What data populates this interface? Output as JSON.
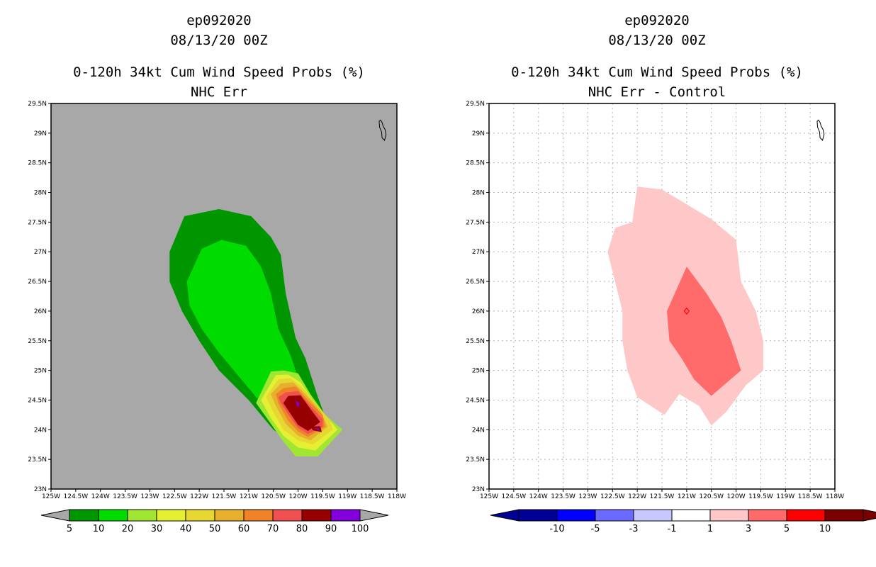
{
  "colors": {
    "gray_bg": "#a8a8a8",
    "prob": [
      "#009600",
      "#00dc00",
      "#a0e632",
      "#e6f032",
      "#e6d732",
      "#e6af2d",
      "#f08228",
      "#f05050",
      "#960000",
      "#8200dc"
    ],
    "diff": [
      "#000096",
      "#0000ff",
      "#6a6aff",
      "#c8c8ff",
      "#ffffff",
      "#ffc8c8",
      "#ff6a6a",
      "#ff0000",
      "#780000"
    ]
  },
  "left_panel": {
    "storm": "ep092020",
    "datetime": "08/13/20 00Z",
    "title": "0-120h 34kt Cum Wind Speed Probs (%)",
    "subtitle": "NHC Err",
    "colorbar_labels": [
      "5",
      "10",
      "20",
      "30",
      "40",
      "50",
      "60",
      "70",
      "80",
      "90",
      "100"
    ]
  },
  "right_panel": {
    "storm": "ep092020",
    "datetime": "08/13/20 00Z",
    "title": "0-120h 34kt Cum Wind Speed Probs (%)",
    "subtitle": "NHC Err - Control",
    "colorbar_labels": [
      "-10",
      "-5",
      "-3",
      "-1",
      "1",
      "3",
      "5",
      "10"
    ]
  },
  "lat_labels": [
    "29.5N",
    "29N",
    "28.5N",
    "28N",
    "27.5N",
    "27N",
    "26.5N",
    "26N",
    "25.5N",
    "25N",
    "24.5N",
    "24N",
    "23.5N",
    "23N"
  ],
  "lon_labels": [
    "125W",
    "124.5W",
    "124W",
    "123.5W",
    "123W",
    "122.5W",
    "122W",
    "121.5W",
    "121W",
    "120.5W",
    "120W",
    "119.5W",
    "119W",
    "118.5W",
    "118W"
  ],
  "map_extent": {
    "lon_min": -125,
    "lon_max": -118,
    "lat_min": 23,
    "lat_max": 29.5
  }
}
